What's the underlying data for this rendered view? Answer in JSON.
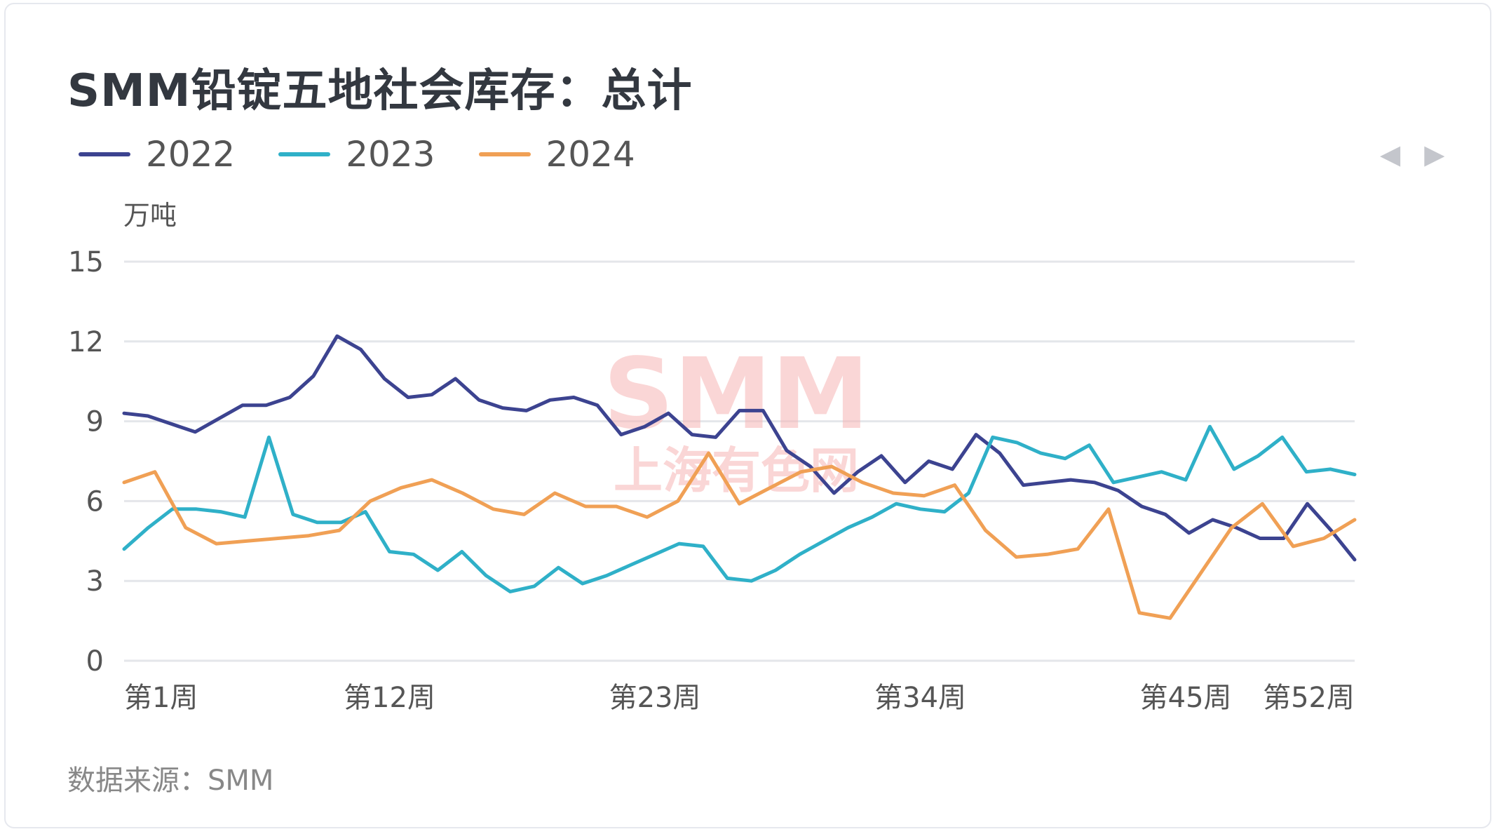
{
  "title": "SMM铅锭五地社会库存：总计",
  "unit_label": "万吨",
  "source_label": "数据来源：SMM",
  "watermark": {
    "logo": "SMM",
    "text": "上海有色网"
  },
  "pager": {
    "prev_icon": "◀",
    "next_icon": "▶"
  },
  "legend": [
    {
      "name": "2022",
      "color": "#3c4390"
    },
    {
      "name": "2023",
      "color": "#2fb0c8"
    },
    {
      "name": "2024",
      "color": "#f0a055"
    }
  ],
  "chart_data": {
    "type": "line",
    "title": "SMM铅锭五地社会库存：总计",
    "ylabel": "万吨",
    "ylim": [
      0,
      15
    ],
    "yticks": [
      0,
      3,
      6,
      9,
      12,
      15
    ],
    "xlim": [
      1,
      52
    ],
    "x_ticks": [
      {
        "week": 1,
        "label": "第1周"
      },
      {
        "week": 12,
        "label": "第12周"
      },
      {
        "week": 23,
        "label": "第23周"
      },
      {
        "week": 34,
        "label": "第34周"
      },
      {
        "week": 45,
        "label": "第45周"
      },
      {
        "week": 52,
        "label": "第52周"
      }
    ],
    "grid": true,
    "legend_position": "top-left",
    "series": [
      {
        "name": "2022",
        "color": "#3c4390",
        "values": [
          9.3,
          9.2,
          8.9,
          8.6,
          9.1,
          9.6,
          9.6,
          9.9,
          10.7,
          12.2,
          11.7,
          10.6,
          9.9,
          10.0,
          10.6,
          9.8,
          9.5,
          9.4,
          9.8,
          9.9,
          9.6,
          8.5,
          8.8,
          9.3,
          8.5,
          8.4,
          9.4,
          9.4,
          7.9,
          7.3,
          6.3,
          7.1,
          7.7,
          6.7,
          7.5,
          7.2,
          8.5,
          7.8,
          6.6,
          6.7,
          6.8,
          6.7,
          6.4,
          5.8,
          5.5,
          4.8,
          5.3,
          5.0,
          4.6,
          4.6,
          5.9,
          4.9,
          3.8
        ]
      },
      {
        "name": "2023",
        "color": "#2fb0c8",
        "values": [
          4.2,
          5.0,
          5.7,
          5.7,
          5.6,
          5.4,
          8.4,
          5.5,
          5.2,
          5.2,
          5.6,
          4.1,
          4.0,
          3.4,
          4.1,
          3.2,
          2.6,
          2.8,
          3.5,
          2.9,
          3.2,
          3.6,
          4.0,
          4.4,
          4.3,
          3.1,
          3.0,
          3.4,
          4.0,
          4.5,
          5.0,
          5.4,
          5.9,
          5.7,
          5.6,
          6.3,
          8.4,
          8.2,
          7.8,
          7.6,
          8.1,
          6.7,
          6.9,
          7.1,
          6.8,
          8.8,
          7.2,
          7.7,
          8.4,
          7.1,
          7.2,
          7.0
        ]
      },
      {
        "name": "2024",
        "color": "#f0a055",
        "values": [
          6.7,
          7.1,
          5.0,
          4.4,
          4.5,
          4.6,
          4.7,
          4.9,
          6.0,
          6.5,
          6.8,
          6.3,
          5.7,
          5.5,
          6.3,
          5.8,
          5.8,
          5.4,
          6.0,
          7.8,
          5.9,
          6.5,
          7.1,
          7.3,
          6.7,
          6.3,
          6.2,
          6.6,
          4.9,
          3.9,
          4.0,
          4.2,
          5.7,
          1.8,
          1.6,
          3.3,
          5.0,
          5.9,
          4.3,
          4.6,
          5.3
        ]
      }
    ]
  }
}
